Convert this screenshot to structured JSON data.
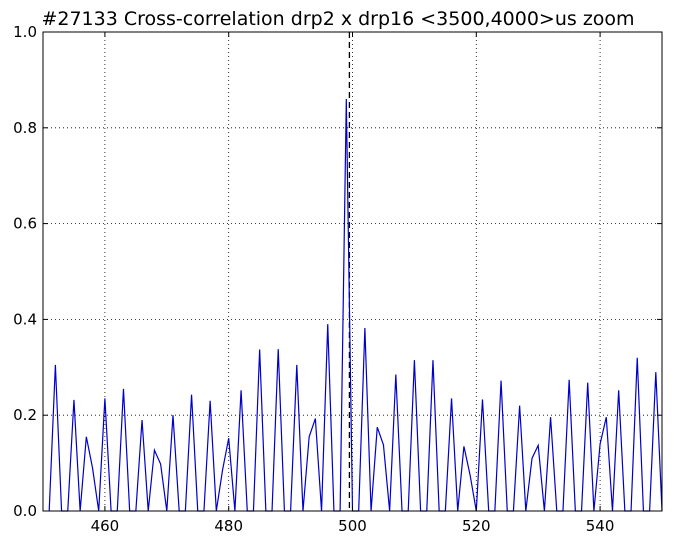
{
  "chart_data": {
    "type": "line",
    "title": "#27133 Cross-correlation drp2 x drp16 <3500,4000>us zoom",
    "xlabel": "",
    "ylabel": "",
    "xlim": [
      450,
      550
    ],
    "ylim": [
      0,
      1.0
    ],
    "x_ticks": [
      460,
      480,
      500,
      520,
      540
    ],
    "x_tick_labels": [
      "460",
      "480",
      "500",
      "520",
      "540"
    ],
    "y_ticks": [
      0.0,
      0.2,
      0.4,
      0.6,
      0.8,
      1.0
    ],
    "y_tick_labels": [
      "0.0",
      "0.2",
      "0.4",
      "0.6",
      "0.8",
      "1.0"
    ],
    "grid": true,
    "grid_style": "dotted",
    "vline": {
      "x": 499.5,
      "style": "dashed",
      "color": "#000000"
    },
    "series": [
      {
        "color": "#0000cc",
        "points": [
          [
            451,
            0.0
          ],
          [
            452,
            0.305
          ],
          [
            453,
            0.0
          ],
          [
            454,
            0.0
          ],
          [
            455,
            0.232
          ],
          [
            456,
            0.0
          ],
          [
            457,
            0.155
          ],
          [
            458,
            0.09
          ],
          [
            459,
            0.0
          ],
          [
            460,
            0.235
          ],
          [
            461,
            0.0
          ],
          [
            462,
            0.0
          ],
          [
            463,
            0.255
          ],
          [
            464,
            0.0
          ],
          [
            465,
            0.0
          ],
          [
            466,
            0.19
          ],
          [
            467,
            0.0
          ],
          [
            468,
            0.127
          ],
          [
            469,
            0.098
          ],
          [
            470,
            0.0
          ],
          [
            471,
            0.2
          ],
          [
            472,
            0.0
          ],
          [
            473,
            0.0
          ],
          [
            474,
            0.243
          ],
          [
            475,
            0.0
          ],
          [
            476,
            0.0
          ],
          [
            477,
            0.23
          ],
          [
            478,
            0.0
          ],
          [
            479,
            0.085
          ],
          [
            480,
            0.152
          ],
          [
            481,
            0.0
          ],
          [
            482,
            0.252
          ],
          [
            483,
            0.0
          ],
          [
            484,
            0.0
          ],
          [
            485,
            0.337
          ],
          [
            486,
            0.0
          ],
          [
            487,
            0.0
          ],
          [
            488,
            0.338
          ],
          [
            489,
            0.0
          ],
          [
            490,
            0.0
          ],
          [
            491,
            0.305
          ],
          [
            492,
            0.0
          ],
          [
            493,
            0.155
          ],
          [
            494,
            0.193
          ],
          [
            495,
            0.0
          ],
          [
            496,
            0.39
          ],
          [
            497,
            0.0
          ],
          [
            498,
            0.0
          ],
          [
            499,
            0.86
          ],
          [
            500,
            0.0
          ],
          [
            501,
            0.0
          ],
          [
            502,
            0.382
          ],
          [
            503,
            0.0
          ],
          [
            504,
            0.175
          ],
          [
            505,
            0.138
          ],
          [
            506,
            0.0
          ],
          [
            507,
            0.285
          ],
          [
            508,
            0.0
          ],
          [
            509,
            0.0
          ],
          [
            510,
            0.315
          ],
          [
            511,
            0.0
          ],
          [
            512,
            0.0
          ],
          [
            513,
            0.315
          ],
          [
            514,
            0.0
          ],
          [
            515,
            0.0
          ],
          [
            516,
            0.235
          ],
          [
            517,
            0.0
          ],
          [
            518,
            0.135
          ],
          [
            519,
            0.075
          ],
          [
            520,
            0.0
          ],
          [
            521,
            0.233
          ],
          [
            522,
            0.0
          ],
          [
            523,
            0.0
          ],
          [
            524,
            0.272
          ],
          [
            525,
            0.0
          ],
          [
            526,
            0.0
          ],
          [
            527,
            0.22
          ],
          [
            528,
            0.0
          ],
          [
            529,
            0.11
          ],
          [
            530,
            0.137
          ],
          [
            531,
            0.0
          ],
          [
            532,
            0.196
          ],
          [
            533,
            0.0
          ],
          [
            534,
            0.0
          ],
          [
            535,
            0.274
          ],
          [
            536,
            0.0
          ],
          [
            537,
            0.0
          ],
          [
            538,
            0.268
          ],
          [
            539,
            0.0
          ],
          [
            540,
            0.14
          ],
          [
            541,
            0.196
          ],
          [
            542,
            0.0
          ],
          [
            543,
            0.252
          ],
          [
            544,
            0.0
          ],
          [
            545,
            0.0
          ],
          [
            546,
            0.32
          ],
          [
            547,
            0.0
          ],
          [
            548,
            0.0
          ],
          [
            549,
            0.29
          ],
          [
            550,
            0.0
          ]
        ]
      }
    ]
  }
}
